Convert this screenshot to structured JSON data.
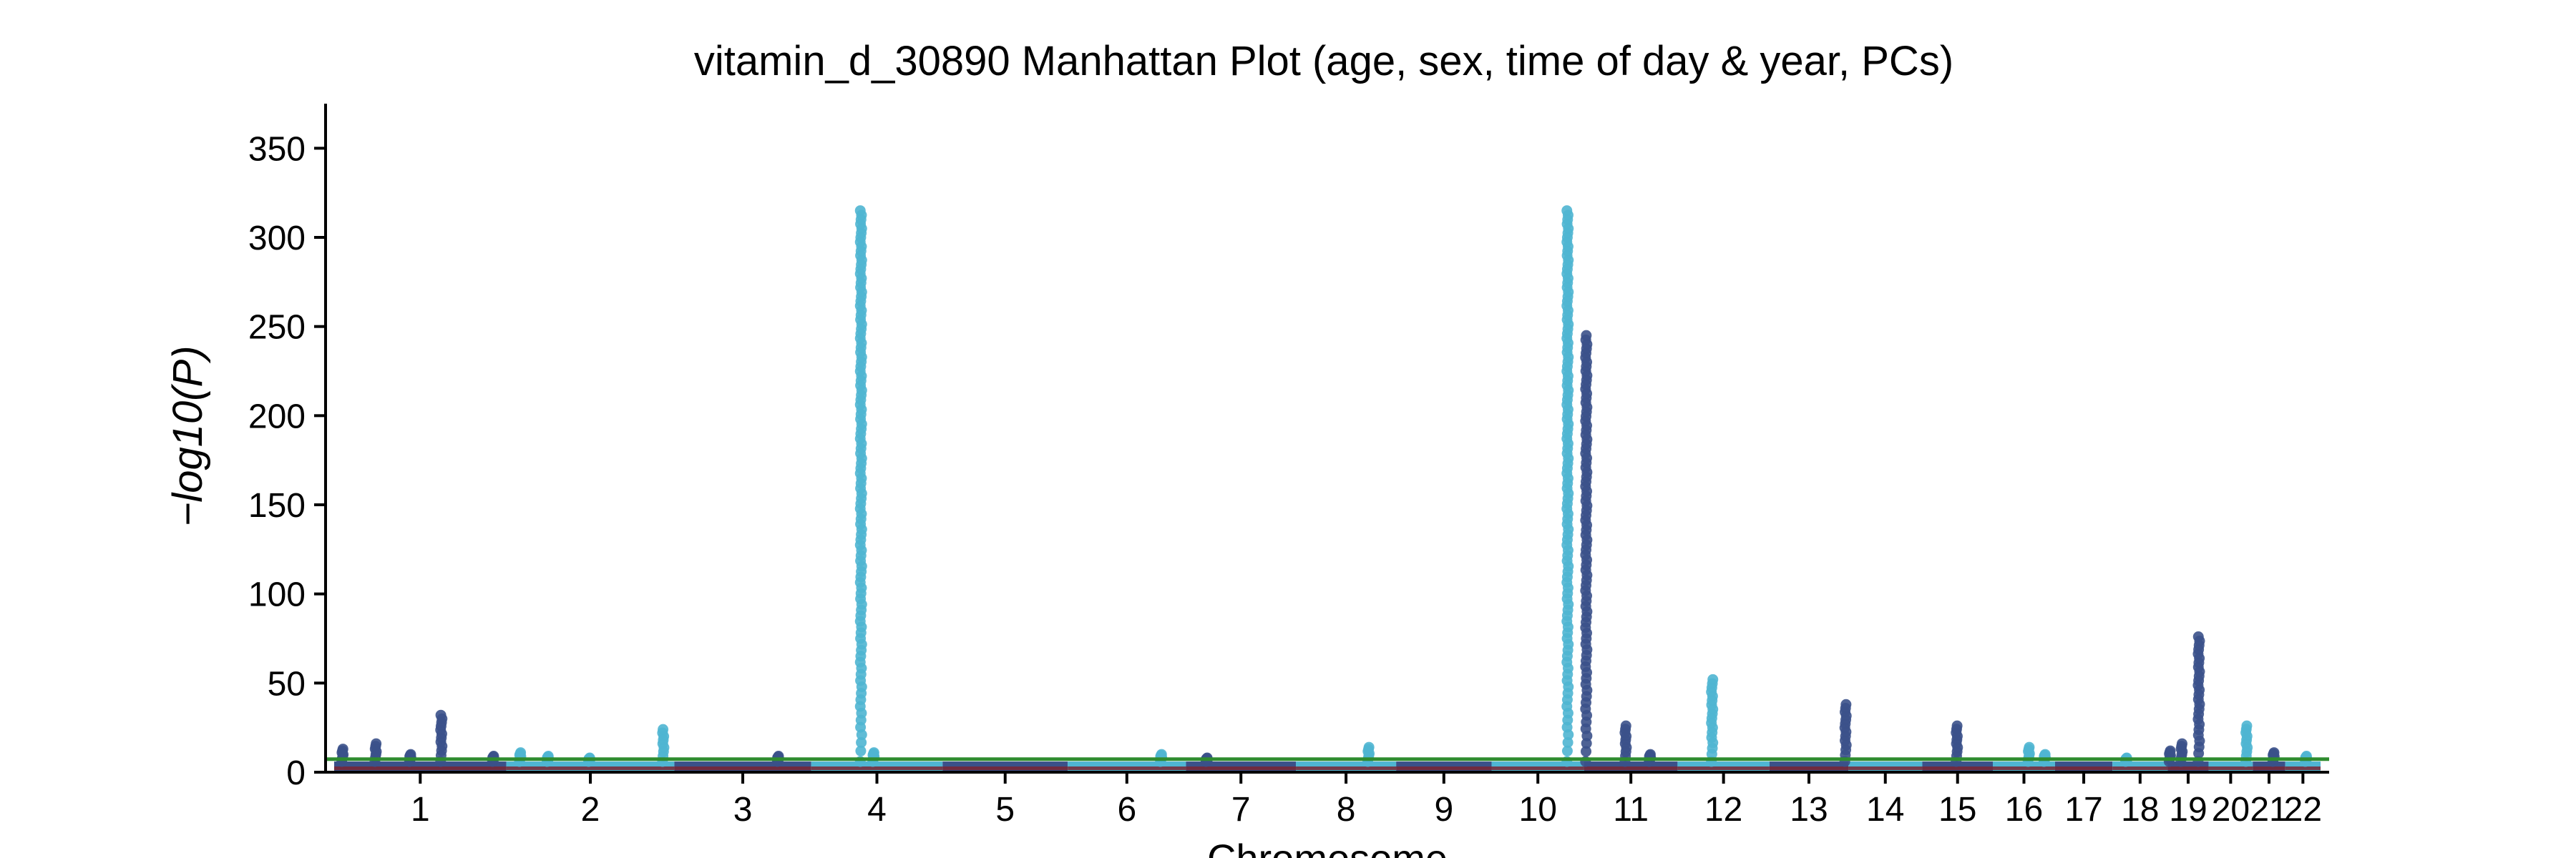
{
  "colors": {
    "odd_chrom": "#3b5189",
    "even_chrom": "#4fb5d2",
    "significance_line": "#2f8c2f",
    "baseline_fill": "#7a2433",
    "axis": "#000000"
  },
  "chart_data": {
    "type": "scatter",
    "subtype": "manhattan",
    "title": "vitamin_d_30890 Manhattan Plot (age, sex, time of day & year, PCs)",
    "xlabel": "Chromosome",
    "ylabel": "−log10(P)",
    "ylim": [
      0,
      375
    ],
    "yticks": [
      0,
      50,
      100,
      150,
      200,
      250,
      300,
      350
    ],
    "grid": false,
    "legend": "none",
    "significance_threshold": 7.3,
    "chromosomes": [
      {
        "label": "1",
        "start": 0,
        "end": 249
      },
      {
        "label": "2",
        "start": 249,
        "end": 492
      },
      {
        "label": "3",
        "start": 492,
        "end": 690
      },
      {
        "label": "4",
        "start": 690,
        "end": 880
      },
      {
        "label": "5",
        "start": 880,
        "end": 1061
      },
      {
        "label": "6",
        "start": 1061,
        "end": 1232
      },
      {
        "label": "7",
        "start": 1232,
        "end": 1391
      },
      {
        "label": "8",
        "start": 1391,
        "end": 1536
      },
      {
        "label": "9",
        "start": 1536,
        "end": 1674
      },
      {
        "label": "10",
        "start": 1674,
        "end": 1808
      },
      {
        "label": "11",
        "start": 1808,
        "end": 1943
      },
      {
        "label": "12",
        "start": 1943,
        "end": 2076
      },
      {
        "label": "13",
        "start": 2076,
        "end": 2190
      },
      {
        "label": "14",
        "start": 2190,
        "end": 2297
      },
      {
        "label": "15",
        "start": 2297,
        "end": 2399
      },
      {
        "label": "16",
        "start": 2399,
        "end": 2489
      },
      {
        "label": "17",
        "start": 2489,
        "end": 2572
      },
      {
        "label": "18",
        "start": 2572,
        "end": 2652
      },
      {
        "label": "19",
        "start": 2652,
        "end": 2711
      },
      {
        "label": "20",
        "start": 2711,
        "end": 2775
      },
      {
        "label": "21",
        "start": 2775,
        "end": 2822
      },
      {
        "label": "22",
        "start": 2822,
        "end": 2873
      }
    ],
    "peaks": [
      {
        "chrom": "1",
        "pos": 12,
        "max": 13
      },
      {
        "chrom": "1",
        "pos": 60,
        "max": 16
      },
      {
        "chrom": "1",
        "pos": 110,
        "max": 10
      },
      {
        "chrom": "1",
        "pos": 155,
        "max": 32
      },
      {
        "chrom": "1",
        "pos": 230,
        "max": 9
      },
      {
        "chrom": "2",
        "pos": 20,
        "max": 11
      },
      {
        "chrom": "2",
        "pos": 60,
        "max": 9
      },
      {
        "chrom": "2",
        "pos": 120,
        "max": 8
      },
      {
        "chrom": "2",
        "pos": 227,
        "max": 24
      },
      {
        "chrom": "3",
        "pos": 150,
        "max": 9
      },
      {
        "chrom": "4",
        "pos": 72,
        "max": 315
      },
      {
        "chrom": "4",
        "pos": 90,
        "max": 11
      },
      {
        "chrom": "6",
        "pos": 135,
        "max": 10
      },
      {
        "chrom": "7",
        "pos": 30,
        "max": 8
      },
      {
        "chrom": "8",
        "pos": 105,
        "max": 14
      },
      {
        "chrom": "10",
        "pos": 110,
        "max": 315
      },
      {
        "chrom": "11",
        "pos": 3,
        "max": 245
      },
      {
        "chrom": "11",
        "pos": 60,
        "max": 26
      },
      {
        "chrom": "11",
        "pos": 95,
        "max": 10
      },
      {
        "chrom": "12",
        "pos": 50,
        "max": 52
      },
      {
        "chrom": "13",
        "pos": 110,
        "max": 38
      },
      {
        "chrom": "15",
        "pos": 50,
        "max": 26
      },
      {
        "chrom": "16",
        "pos": 52,
        "max": 14
      },
      {
        "chrom": "16",
        "pos": 75,
        "max": 10
      },
      {
        "chrom": "18",
        "pos": 20,
        "max": 8
      },
      {
        "chrom": "19",
        "pos": 3,
        "max": 12
      },
      {
        "chrom": "19",
        "pos": 20,
        "max": 16
      },
      {
        "chrom": "19",
        "pos": 45,
        "max": 76
      },
      {
        "chrom": "20",
        "pos": 55,
        "max": 26
      },
      {
        "chrom": "21",
        "pos": 30,
        "max": 11
      },
      {
        "chrom": "22",
        "pos": 30,
        "max": 9
      }
    ]
  }
}
